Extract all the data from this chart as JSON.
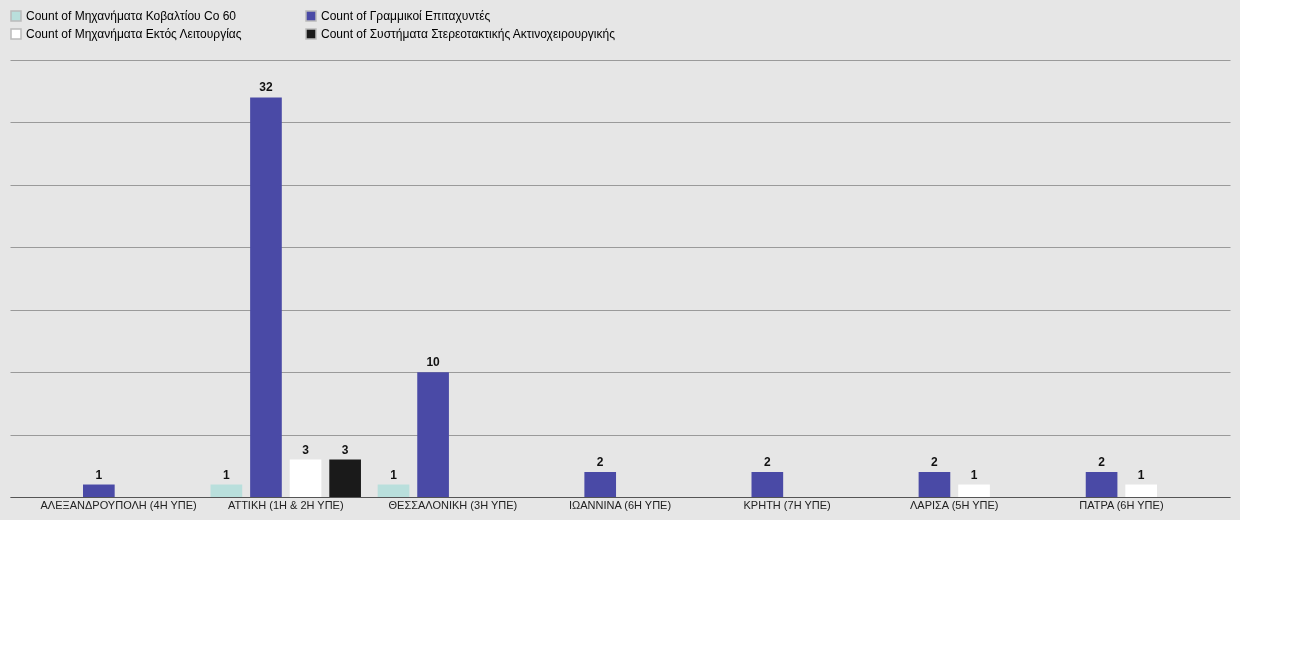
{
  "chart_data": {
    "type": "bar",
    "categories": [
      "ΑΛΕΞΑΝΔΡΟΥΠΟΛΗ (4Η ΥΠΕ)",
      "ΑΤΤΙΚΗ (1Η & 2Η ΥΠΕ)",
      "ΘΕΣΣΑΛΟΝΙΚΗ (3Η ΥΠΕ)",
      "ΙΩΑΝΝΙΝΑ (6Η ΥΠΕ)",
      "ΚΡΗΤΗ (7Η ΥΠΕ)",
      "ΛΑΡΙΣΑ (5Η ΥΠΕ)",
      "ΠΑΤΡΑ (6Η ΥΠΕ)"
    ],
    "series": [
      {
        "name": "Count of Μηχανήματα Κοβαλτίου Co 60",
        "color": "#b9dfdc",
        "values": [
          null,
          1,
          1,
          null,
          null,
          null,
          null
        ]
      },
      {
        "name": "Count of  Γραμμικοί Επιταχυντές",
        "color": "#4a4aa6",
        "values": [
          1,
          32,
          10,
          2,
          2,
          2,
          2
        ]
      },
      {
        "name": "Count of Μηχανήματα Εκτός Λειτουργίας",
        "color": "#ffffff",
        "values": [
          null,
          3,
          null,
          null,
          null,
          1,
          1
        ]
      },
      {
        "name": "Count of Συστήματα Στερεοτακτικής Ακτινοχειρουργικής",
        "color": "#1a1a1a",
        "values": [
          null,
          3,
          null,
          null,
          null,
          null,
          null
        ]
      }
    ],
    "ylim": [
      0,
      35
    ],
    "yticks": [
      {
        "value": 0,
        "label": null
      },
      {
        "value": 5,
        "label": null
      },
      {
        "value": 10,
        "label": null
      },
      {
        "value": 15,
        "label": null
      },
      {
        "value": 20,
        "label": null
      },
      {
        "value": 25,
        "label": null
      },
      {
        "value": 30,
        "label": null
      },
      {
        "value": 35,
        "label": null
      }
    ],
    "grid": "y",
    "legend": "top",
    "data_labels": true,
    "tick_labels": "x"
  }
}
